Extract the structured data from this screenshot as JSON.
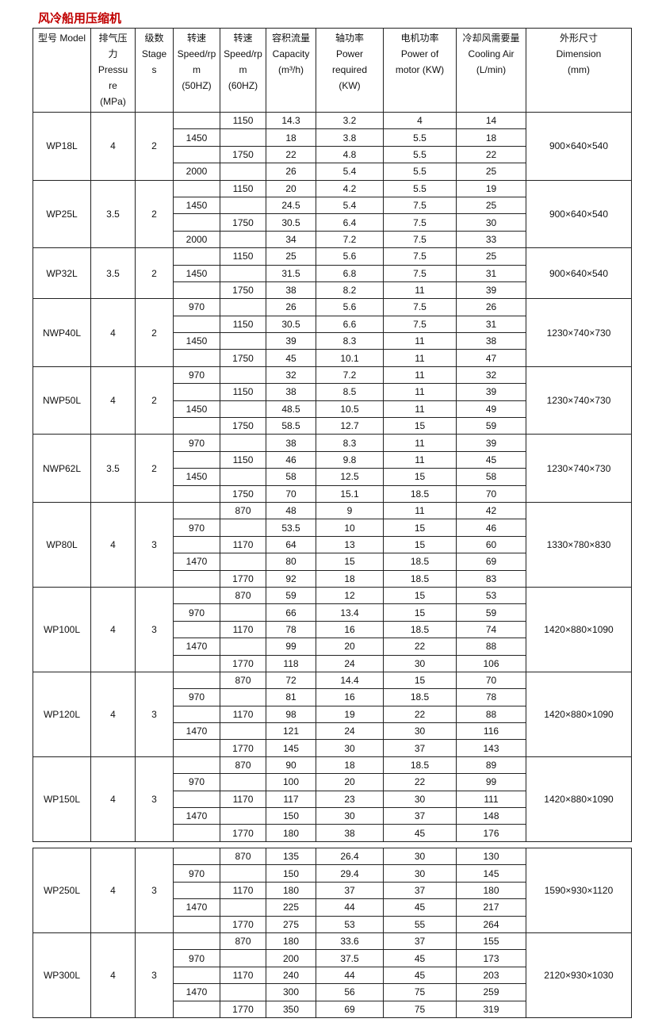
{
  "title": "风冷船用压缩机",
  "headers": [
    [
      "型号 Model"
    ],
    [
      "排气压",
      "力",
      "Pressu",
      "re",
      "(MPa)"
    ],
    [
      "级数",
      "Stage",
      "s"
    ],
    [
      "转速",
      "Speed/rp",
      "m",
      "(50HZ)"
    ],
    [
      "转速",
      "Speed/rp",
      "m",
      "(60HZ)"
    ],
    [
      "容积流量",
      "Capacity",
      "(m³/h)"
    ],
    [
      "轴功率",
      "Power",
      "required",
      "(KW)"
    ],
    [
      "电机功率",
      "Power of",
      "motor (KW)"
    ],
    [
      "冷却风需要量",
      "Cooling Air",
      "(L/min)"
    ],
    [
      "外形尺寸",
      "Dimension",
      "(mm)"
    ]
  ],
  "tables": [
    [
      {
        "model": "WP18L",
        "pressure": "4",
        "stages": "2",
        "dimension": "900×640×540",
        "rows": [
          [
            "",
            "1150",
            "14.3",
            "3.2",
            "4",
            "14"
          ],
          [
            "1450",
            "",
            "18",
            "3.8",
            "5.5",
            "18"
          ],
          [
            "",
            "1750",
            "22",
            "4.8",
            "5.5",
            "22"
          ],
          [
            "2000",
            "",
            "26",
            "5.4",
            "5.5",
            "25"
          ]
        ]
      },
      {
        "model": "WP25L",
        "pressure": "3.5",
        "stages": "2",
        "dimension": "900×640×540",
        "rows": [
          [
            "",
            "1150",
            "20",
            "4.2",
            "5.5",
            "19"
          ],
          [
            "1450",
            "",
            "24.5",
            "5.4",
            "7.5",
            "25"
          ],
          [
            "",
            "1750",
            "30.5",
            "6.4",
            "7.5",
            "30"
          ],
          [
            "2000",
            "",
            "34",
            "7.2",
            "7.5",
            "33"
          ]
        ]
      },
      {
        "model": "WP32L",
        "pressure": "3.5",
        "stages": "2",
        "dimension": "900×640×540",
        "rows": [
          [
            "",
            "1150",
            "25",
            "5.6",
            "7.5",
            "25"
          ],
          [
            "1450",
            "",
            "31.5",
            "6.8",
            "7.5",
            "31"
          ],
          [
            "",
            "1750",
            "38",
            "8.2",
            "11",
            "39"
          ]
        ]
      },
      {
        "model": "NWP40L",
        "pressure": "4",
        "stages": "2",
        "dimension": "1230×740×730",
        "rows": [
          [
            "970",
            "",
            "26",
            "5.6",
            "7.5",
            "26"
          ],
          [
            "",
            "1150",
            "30.5",
            "6.6",
            "7.5",
            "31"
          ],
          [
            "1450",
            "",
            "39",
            "8.3",
            "11",
            "38"
          ],
          [
            "",
            "1750",
            "45",
            "10.1",
            "11",
            "47"
          ]
        ]
      },
      {
        "model": "NWP50L",
        "pressure": "4",
        "stages": "2",
        "dimension": "1230×740×730",
        "rows": [
          [
            "970",
            "",
            "32",
            "7.2",
            "11",
            "32"
          ],
          [
            "",
            "1150",
            "38",
            "8.5",
            "11",
            "39"
          ],
          [
            "1450",
            "",
            "48.5",
            "10.5",
            "11",
            "49"
          ],
          [
            "",
            "1750",
            "58.5",
            "12.7",
            "15",
            "59"
          ]
        ]
      },
      {
        "model": "NWP62L",
        "pressure": "3.5",
        "stages": "2",
        "dimension": "1230×740×730",
        "rows": [
          [
            "970",
            "",
            "38",
            "8.3",
            "11",
            "39"
          ],
          [
            "",
            "1150",
            "46",
            "9.8",
            "11",
            "45"
          ],
          [
            "1450",
            "",
            "58",
            "12.5",
            "15",
            "58"
          ],
          [
            "",
            "1750",
            "70",
            "15.1",
            "18.5",
            "70"
          ]
        ]
      },
      {
        "model": "WP80L",
        "pressure": "4",
        "stages": "3",
        "dimension": "1330×780×830",
        "rows": [
          [
            "",
            "870",
            "48",
            "9",
            "11",
            "42"
          ],
          [
            "970",
            "",
            "53.5",
            "10",
            "15",
            "46"
          ],
          [
            "",
            "1170",
            "64",
            "13",
            "15",
            "60"
          ],
          [
            "1470",
            "",
            "80",
            "15",
            "18.5",
            "69"
          ],
          [
            "",
            "1770",
            "92",
            "18",
            "18.5",
            "83"
          ]
        ]
      },
      {
        "model": "WP100L",
        "pressure": "4",
        "stages": "3",
        "dimension": "1420×880×1090",
        "rows": [
          [
            "",
            "870",
            "59",
            "12",
            "15",
            "53"
          ],
          [
            "970",
            "",
            "66",
            "13.4",
            "15",
            "59"
          ],
          [
            "",
            "1170",
            "78",
            "16",
            "18.5",
            "74"
          ],
          [
            "1470",
            "",
            "99",
            "20",
            "22",
            "88"
          ],
          [
            "",
            "1770",
            "118",
            "24",
            "30",
            "106"
          ]
        ]
      },
      {
        "model": "WP120L",
        "pressure": "4",
        "stages": "3",
        "dimension": "1420×880×1090",
        "rows": [
          [
            "",
            "870",
            "72",
            "14.4",
            "15",
            "70"
          ],
          [
            "970",
            "",
            "81",
            "16",
            "18.5",
            "78"
          ],
          [
            "",
            "1170",
            "98",
            "19",
            "22",
            "88"
          ],
          [
            "1470",
            "",
            "121",
            "24",
            "30",
            "116"
          ],
          [
            "",
            "1770",
            "145",
            "30",
            "37",
            "143"
          ]
        ]
      },
      {
        "model": "WP150L",
        "pressure": "4",
        "stages": "3",
        "dimension": "1420×880×1090",
        "rows": [
          [
            "",
            "870",
            "90",
            "18",
            "18.5",
            "89"
          ],
          [
            "970",
            "",
            "100",
            "20",
            "22",
            "99"
          ],
          [
            "",
            "1170",
            "117",
            "23",
            "30",
            "111"
          ],
          [
            "1470",
            "",
            "150",
            "30",
            "37",
            "148"
          ],
          [
            "",
            "1770",
            "180",
            "38",
            "45",
            "176"
          ]
        ]
      }
    ],
    [
      {
        "model": "WP250L",
        "pressure": "4",
        "stages": "3",
        "dimension": "1590×930×1120",
        "rows": [
          [
            "",
            "870",
            "135",
            "26.4",
            "30",
            "130"
          ],
          [
            "970",
            "",
            "150",
            "29.4",
            "30",
            "145"
          ],
          [
            "",
            "1170",
            "180",
            "37",
            "37",
            "180"
          ],
          [
            "1470",
            "",
            "225",
            "44",
            "45",
            "217"
          ],
          [
            "",
            "1770",
            "275",
            "53",
            "55",
            "264"
          ]
        ]
      },
      {
        "model": "WP300L",
        "pressure": "4",
        "stages": "3",
        "dimension": "2120×930×1030",
        "rows": [
          [
            "",
            "870",
            "180",
            "33.6",
            "37",
            "155"
          ],
          [
            "970",
            "",
            "200",
            "37.5",
            "45",
            "173"
          ],
          [
            "",
            "1170",
            "240",
            "44",
            "45",
            "203"
          ],
          [
            "1470",
            "",
            "300",
            "56",
            "75",
            "259"
          ],
          [
            "",
            "1770",
            "350",
            "69",
            "75",
            "319"
          ]
        ]
      }
    ]
  ]
}
